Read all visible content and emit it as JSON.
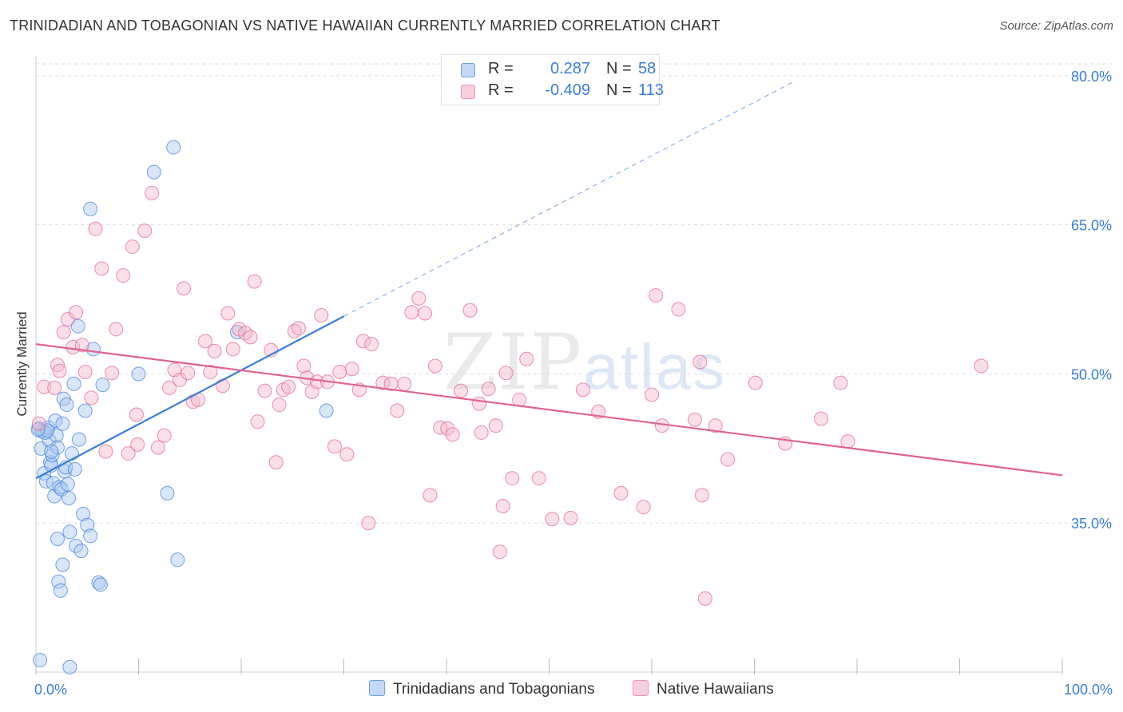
{
  "header": {
    "title": "TRINIDADIAN AND TOBAGONIAN VS NATIVE HAWAIIAN CURRENTLY MARRIED CORRELATION CHART",
    "source": "Source: ZipAtlas.com"
  },
  "legend": {
    "rows": [
      {
        "r_label": "R =",
        "r_value": "0.287",
        "n_label": "N =",
        "n_value": "58",
        "color": "#a9c8f0"
      },
      {
        "r_label": "R =",
        "r_value": "-0.409",
        "n_label": "N =",
        "n_value": "113",
        "color": "#f5b8cb"
      }
    ]
  },
  "watermark": {
    "zip": "ZIP",
    "atlas": "atlas"
  },
  "chart_data": {
    "type": "scatter",
    "title": "TRINIDADIAN AND TOBAGONIAN VS NATIVE HAWAIIAN CURRENTLY MARRIED CORRELATION CHART",
    "xlabel": "",
    "ylabel": "Currently Married",
    "xlim": [
      0,
      100
    ],
    "ylim": [
      20,
      82
    ],
    "x_tick_labels": [
      "0.0%",
      "100.0%"
    ],
    "y_ticks": [
      35,
      50,
      65,
      80
    ],
    "y_tick_labels": [
      "35.0%",
      "50.0%",
      "65.0%",
      "80.0%"
    ],
    "grid": true,
    "legend_position": "top-center",
    "series": [
      {
        "name": "Trinidadians and Tobagonians",
        "color": "#3a7dd8",
        "fill": "#a9c8f0",
        "trend": {
          "x0": 0,
          "y0": 39.5,
          "x1": 30,
          "y1": 55.8,
          "dashed_to_x": 74,
          "dashed_to_y": 79.5
        },
        "points": [
          [
            0.3,
            44.5
          ],
          [
            0.5,
            42.5
          ],
          [
            0.6,
            44.2
          ],
          [
            0.8,
            40.0
          ],
          [
            1.0,
            39.2
          ],
          [
            1.2,
            44.6
          ],
          [
            1.3,
            43.3
          ],
          [
            1.4,
            41.1
          ],
          [
            1.5,
            40.8
          ],
          [
            1.6,
            41.8
          ],
          [
            1.7,
            39.0
          ],
          [
            1.8,
            37.7
          ],
          [
            1.9,
            45.3
          ],
          [
            2.0,
            43.8
          ],
          [
            2.1,
            42.6
          ],
          [
            2.1,
            33.4
          ],
          [
            2.2,
            29.1
          ],
          [
            2.3,
            38.6
          ],
          [
            2.4,
            28.2
          ],
          [
            2.5,
            38.4
          ],
          [
            2.6,
            30.8
          ],
          [
            2.7,
            47.5
          ],
          [
            2.8,
            40.2
          ],
          [
            2.9,
            40.6
          ],
          [
            3.0,
            46.9
          ],
          [
            3.1,
            38.9
          ],
          [
            3.2,
            37.5
          ],
          [
            3.3,
            34.1
          ],
          [
            3.5,
            42.0
          ],
          [
            3.7,
            49.0
          ],
          [
            3.8,
            40.4
          ],
          [
            3.9,
            32.7
          ],
          [
            4.1,
            54.8
          ],
          [
            4.2,
            43.4
          ],
          [
            4.4,
            32.2
          ],
          [
            4.6,
            35.9
          ],
          [
            4.8,
            46.3
          ],
          [
            5.0,
            34.8
          ],
          [
            5.3,
            33.7
          ],
          [
            5.6,
            52.5
          ],
          [
            6.1,
            29.0
          ],
          [
            6.5,
            48.9
          ],
          [
            5.3,
            66.6
          ],
          [
            13.4,
            72.8
          ],
          [
            11.5,
            70.3
          ],
          [
            10.0,
            50.0
          ],
          [
            12.8,
            38.0
          ],
          [
            13.8,
            31.3
          ],
          [
            19.6,
            54.2
          ],
          [
            28.3,
            46.3
          ],
          [
            0.9,
            44.1
          ],
          [
            1.1,
            44.3
          ],
          [
            6.3,
            28.8
          ],
          [
            0.4,
            21.2
          ],
          [
            0.2,
            44.4
          ],
          [
            3.3,
            20.5
          ],
          [
            1.5,
            42.2
          ],
          [
            2.6,
            45.0
          ]
        ]
      },
      {
        "name": "Native Hawaiians",
        "color": "#e0628f",
        "fill": "#f5b8cb",
        "trend": {
          "x0": 0,
          "y0": 53.0,
          "x1": 100,
          "y1": 39.8
        },
        "points": [
          [
            0.3,
            45.0
          ],
          [
            0.8,
            48.7
          ],
          [
            1.8,
            48.6
          ],
          [
            2.1,
            50.9
          ],
          [
            2.3,
            50.3
          ],
          [
            2.7,
            54.2
          ],
          [
            3.1,
            55.5
          ],
          [
            3.6,
            52.7
          ],
          [
            3.9,
            56.2
          ],
          [
            4.5,
            52.9
          ],
          [
            4.8,
            50.2
          ],
          [
            5.4,
            47.6
          ],
          [
            5.8,
            64.6
          ],
          [
            6.4,
            60.6
          ],
          [
            6.8,
            42.2
          ],
          [
            7.4,
            50.1
          ],
          [
            7.8,
            54.5
          ],
          [
            8.5,
            59.9
          ],
          [
            9.0,
            42.0
          ],
          [
            9.4,
            62.8
          ],
          [
            9.8,
            45.9
          ],
          [
            10.6,
            64.4
          ],
          [
            11.3,
            68.2
          ],
          [
            11.9,
            42.6
          ],
          [
            12.5,
            43.8
          ],
          [
            13.0,
            48.6
          ],
          [
            13.5,
            50.4
          ],
          [
            14.0,
            49.4
          ],
          [
            14.4,
            58.6
          ],
          [
            14.8,
            50.1
          ],
          [
            15.3,
            47.2
          ],
          [
            15.8,
            47.4
          ],
          [
            16.5,
            53.3
          ],
          [
            17.0,
            50.2
          ],
          [
            17.4,
            52.3
          ],
          [
            18.2,
            48.8
          ],
          [
            18.7,
            56.1
          ],
          [
            19.2,
            52.5
          ],
          [
            19.8,
            54.5
          ],
          [
            20.4,
            54.1
          ],
          [
            20.9,
            53.7
          ],
          [
            21.3,
            59.3
          ],
          [
            21.6,
            45.2
          ],
          [
            22.3,
            48.3
          ],
          [
            22.9,
            52.4
          ],
          [
            23.4,
            41.1
          ],
          [
            23.7,
            46.9
          ],
          [
            24.1,
            48.4
          ],
          [
            24.6,
            48.7
          ],
          [
            25.2,
            54.3
          ],
          [
            25.6,
            54.6
          ],
          [
            26.1,
            50.8
          ],
          [
            26.4,
            49.6
          ],
          [
            26.9,
            48.2
          ],
          [
            27.4,
            49.2
          ],
          [
            27.8,
            55.9
          ],
          [
            28.4,
            49.2
          ],
          [
            29.1,
            42.7
          ],
          [
            29.6,
            50.2
          ],
          [
            30.3,
            41.9
          ],
          [
            30.8,
            50.5
          ],
          [
            31.5,
            48.4
          ],
          [
            31.9,
            53.3
          ],
          [
            32.4,
            35.0
          ],
          [
            32.7,
            53.0
          ],
          [
            33.8,
            49.1
          ],
          [
            34.6,
            49.0
          ],
          [
            35.2,
            46.3
          ],
          [
            35.9,
            49.0
          ],
          [
            36.6,
            56.2
          ],
          [
            37.3,
            57.6
          ],
          [
            37.9,
            56.1
          ],
          [
            38.4,
            37.8
          ],
          [
            38.9,
            50.8
          ],
          [
            39.4,
            44.6
          ],
          [
            40.1,
            44.5
          ],
          [
            40.6,
            43.9
          ],
          [
            41.4,
            48.3
          ],
          [
            42.3,
            56.4
          ],
          [
            43.2,
            47.0
          ],
          [
            43.4,
            44.1
          ],
          [
            44.1,
            48.5
          ],
          [
            44.8,
            44.8
          ],
          [
            45.2,
            32.1
          ],
          [
            45.5,
            36.7
          ],
          [
            45.8,
            50.1
          ],
          [
            46.4,
            39.5
          ],
          [
            47.1,
            47.4
          ],
          [
            47.8,
            51.5
          ],
          [
            49.0,
            39.5
          ],
          [
            50.3,
            35.4
          ],
          [
            52.1,
            35.5
          ],
          [
            53.3,
            48.4
          ],
          [
            54.8,
            46.2
          ],
          [
            57.0,
            38.0
          ],
          [
            59.2,
            36.6
          ],
          [
            60.0,
            47.9
          ],
          [
            60.4,
            57.9
          ],
          [
            61.0,
            44.8
          ],
          [
            62.6,
            56.5
          ],
          [
            64.2,
            45.4
          ],
          [
            64.7,
            51.2
          ],
          [
            64.9,
            37.8
          ],
          [
            65.2,
            27.4
          ],
          [
            66.2,
            44.8
          ],
          [
            67.4,
            41.4
          ],
          [
            70.1,
            49.1
          ],
          [
            73.0,
            43.0
          ],
          [
            76.5,
            45.5
          ],
          [
            78.4,
            49.1
          ],
          [
            79.1,
            43.2
          ],
          [
            92.1,
            50.8
          ],
          [
            9.9,
            42.9
          ]
        ]
      }
    ]
  },
  "bottom_legend": [
    {
      "label": "Trinidadians and Tobagonians",
      "color": "#a9c8f0",
      "border": "#6fa0e0"
    },
    {
      "label": "Native Hawaiians",
      "color": "#f5c6d5",
      "border": "#e797b2"
    }
  ]
}
